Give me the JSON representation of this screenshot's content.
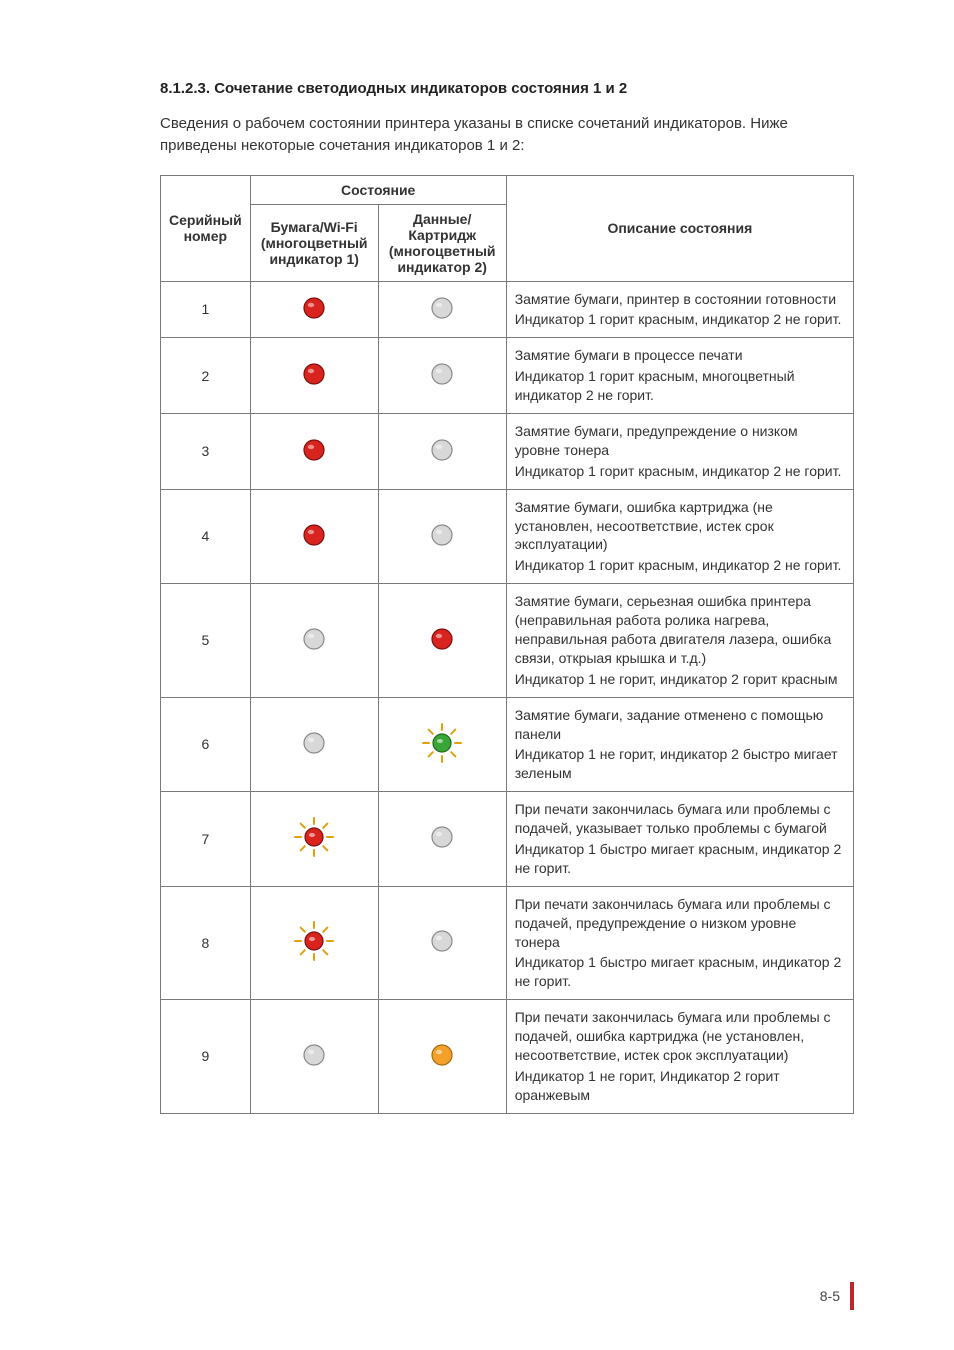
{
  "section_title": "8.1.2.3. Сочетание светодиодных индикаторов состояния 1 и 2",
  "intro": "Сведения о рабочем состоянии принтера указаны в списке сочетаний индикаторов. Ниже приведены некоторые сочетания индикаторов 1 и 2:",
  "table": {
    "header": {
      "serial": "Серийный номер",
      "state_group": "Состояние",
      "indicator1": "Бумага/Wi-Fi (многоцветный индикатор 1)",
      "indicator2": "Данные/ Картридж (многоцветный индикатор 2)",
      "description": "Описание состояния"
    },
    "rows": [
      {
        "serial": "1",
        "ind1": {
          "type": "solid",
          "fill": "#d9231f",
          "stroke": "#7a110e"
        },
        "ind2": {
          "type": "solid",
          "fill": "#d8d8d8",
          "stroke": "#8a8a8a"
        },
        "desc": [
          "Замятие бумаги, принтер в состоянии готовности",
          "Индикатор 1 горит красным, индикатор 2 не горит."
        ]
      },
      {
        "serial": "2",
        "ind1": {
          "type": "solid",
          "fill": "#d9231f",
          "stroke": "#7a110e"
        },
        "ind2": {
          "type": "solid",
          "fill": "#d8d8d8",
          "stroke": "#8a8a8a"
        },
        "desc": [
          "Замятие бумаги в процессе печати",
          "Индикатор 1 горит красным, многоцветный индикатор 2 не горит."
        ]
      },
      {
        "serial": "3",
        "ind1": {
          "type": "solid",
          "fill": "#d9231f",
          "stroke": "#7a110e"
        },
        "ind2": {
          "type": "solid",
          "fill": "#d8d8d8",
          "stroke": "#8a8a8a"
        },
        "desc": [
          "Замятие бумаги, предупреждение о низком уровне тонера",
          "Индикатор 1 горит красным, индикатор 2 не горит."
        ]
      },
      {
        "serial": "4",
        "ind1": {
          "type": "solid",
          "fill": "#d9231f",
          "stroke": "#7a110e"
        },
        "ind2": {
          "type": "solid",
          "fill": "#d8d8d8",
          "stroke": "#8a8a8a"
        },
        "desc": [
          "Замятие бумаги, ошибка картриджа (не установлен, несоответствие, истек срок эксплуатации)",
          "Индикатор 1 горит красным, индикатор 2 не горит."
        ]
      },
      {
        "serial": "5",
        "ind1": {
          "type": "solid",
          "fill": "#d8d8d8",
          "stroke": "#8a8a8a"
        },
        "ind2": {
          "type": "solid",
          "fill": "#d9231f",
          "stroke": "#7a110e"
        },
        "desc": [
          "Замятие бумаги, серьезная ошибка принтера (неправильная работа ролика нагрева, неправильная работа двигателя лазера, ошибка связи, открыая крышка и т.д.)",
          "Индикатор 1 не горит, индикатор 2 горит красным"
        ]
      },
      {
        "serial": "6",
        "ind1": {
          "type": "solid",
          "fill": "#d8d8d8",
          "stroke": "#8a8a8a"
        },
        "ind2": {
          "type": "blink",
          "fill": "#39a738",
          "stroke": "#1f6b1f",
          "ray": "#e2a10a"
        },
        "desc": [
          "Замятие бумаги, задание отменено с помощью панели",
          "Индикатор 1 не горит, индикатор 2 быстро мигает зеленым"
        ]
      },
      {
        "serial": "7",
        "ind1": {
          "type": "blink",
          "fill": "#d9231f",
          "stroke": "#7a110e",
          "ray": "#e2a10a"
        },
        "ind2": {
          "type": "solid",
          "fill": "#d8d8d8",
          "stroke": "#8a8a8a"
        },
        "desc": [
          "При печати закончилась бумага или проблемы с подачей, указывает только проблемы с бумагой",
          "Индикатор 1 быстро мигает красным, индикатор 2 не горит."
        ]
      },
      {
        "serial": "8",
        "ind1": {
          "type": "blink",
          "fill": "#d9231f",
          "stroke": "#7a110e",
          "ray": "#e2a10a"
        },
        "ind2": {
          "type": "solid",
          "fill": "#d8d8d8",
          "stroke": "#8a8a8a"
        },
        "desc": [
          "При печати закончилась бумага или проблемы с подачей, предупреждение о низком уровне тонера",
          "Индикатор 1 быстро мигает красным, индикатор 2 не горит."
        ]
      },
      {
        "serial": "9",
        "ind1": {
          "type": "solid",
          "fill": "#d8d8d8",
          "stroke": "#8a8a8a"
        },
        "ind2": {
          "type": "solid",
          "fill": "#f3a12a",
          "stroke": "#a66a12"
        },
        "desc": [
          "При печати закончилась бумага или проблемы с подачей, ошибка картриджа (не установлен, несоответствие, истек срок эксплуатации)",
          "Индикатор 1 не горит, Индикатор 2 горит оранжевым"
        ]
      }
    ]
  },
  "page_number": "8-5",
  "colors": {
    "accent_red": "#c0272d",
    "table_border": "#7a7a7a",
    "text": "#333333"
  }
}
